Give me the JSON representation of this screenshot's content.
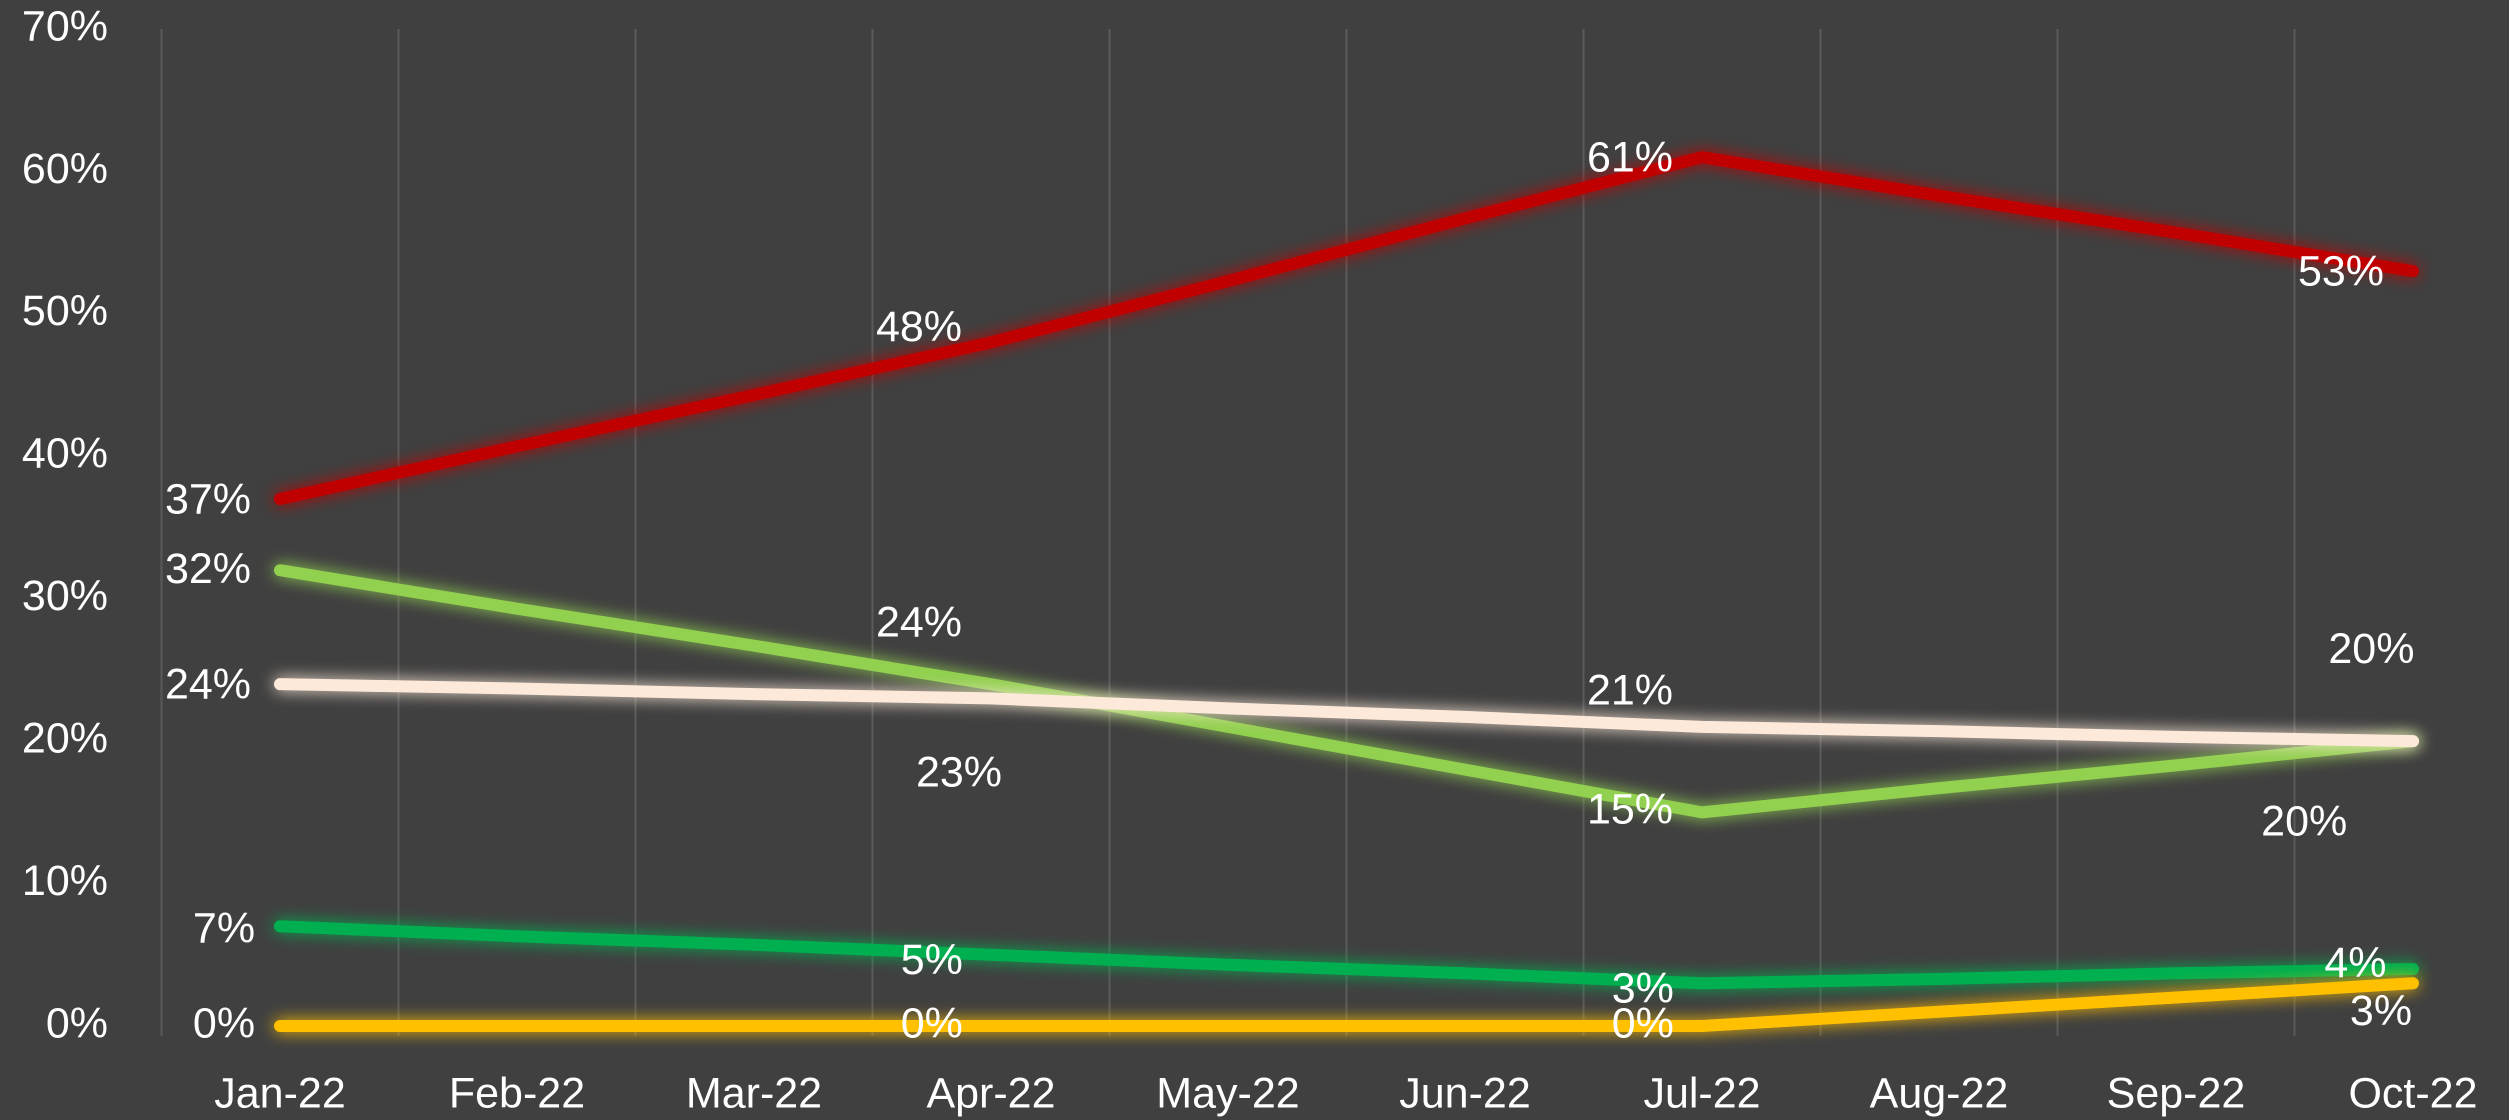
{
  "chart_data": {
    "type": "line",
    "categories": [
      "Jan-22",
      "Feb-22",
      "Mar-22",
      "Apr-22",
      "May-22",
      "Jun-22",
      "Jul-22",
      "Aug-22",
      "Sep-22",
      "Oct-22"
    ],
    "series": [
      {
        "color": "#c00000",
        "values": [
          37,
          40.7,
          44.3,
          48,
          52.3,
          56.7,
          61,
          58.3,
          55.7,
          53
        ],
        "value_labels": [
          "37%",
          null,
          null,
          "48%",
          null,
          null,
          "61%",
          null,
          null,
          "53%"
        ]
      },
      {
        "color": "#92d050",
        "values": [
          32,
          29.3,
          26.7,
          24,
          21,
          18,
          15,
          16.7,
          18.3,
          20
        ],
        "value_labels": [
          "32%",
          null,
          null,
          "24%",
          null,
          null,
          "15%",
          null,
          null,
          "20%"
        ]
      },
      {
        "color": "#fde9d9",
        "values": [
          24,
          23.7,
          23.3,
          23,
          22.3,
          21.7,
          21,
          20.7,
          20.3,
          20
        ],
        "value_labels": [
          "24%",
          null,
          null,
          "23%",
          null,
          null,
          "21%",
          null,
          null,
          "20%"
        ]
      },
      {
        "color": "#00b050",
        "values": [
          7,
          6.3,
          5.7,
          5,
          4.3,
          3.7,
          3,
          3.3,
          3.7,
          4
        ],
        "value_labels": [
          "7%",
          null,
          null,
          "5%",
          null,
          null,
          "3%",
          null,
          null,
          "4%"
        ]
      },
      {
        "color": "#ffc000",
        "values": [
          0,
          0,
          0,
          0,
          0,
          0,
          0,
          1,
          2,
          3
        ],
        "value_labels": [
          "0%",
          null,
          null,
          "0%",
          null,
          null,
          "0%",
          null,
          null,
          "3%"
        ]
      }
    ],
    "ylim": [
      0,
      70
    ],
    "yticks": [
      {
        "value": 0,
        "label": "0%"
      },
      {
        "value": 10,
        "label": "10%"
      },
      {
        "value": 20,
        "label": "20%"
      },
      {
        "value": 30,
        "label": "30%"
      },
      {
        "value": 40,
        "label": "40%"
      },
      {
        "value": 50,
        "label": "50%"
      },
      {
        "value": 60,
        "label": "60%"
      },
      {
        "value": 70,
        "label": "70%"
      }
    ],
    "xgrid": true
  }
}
